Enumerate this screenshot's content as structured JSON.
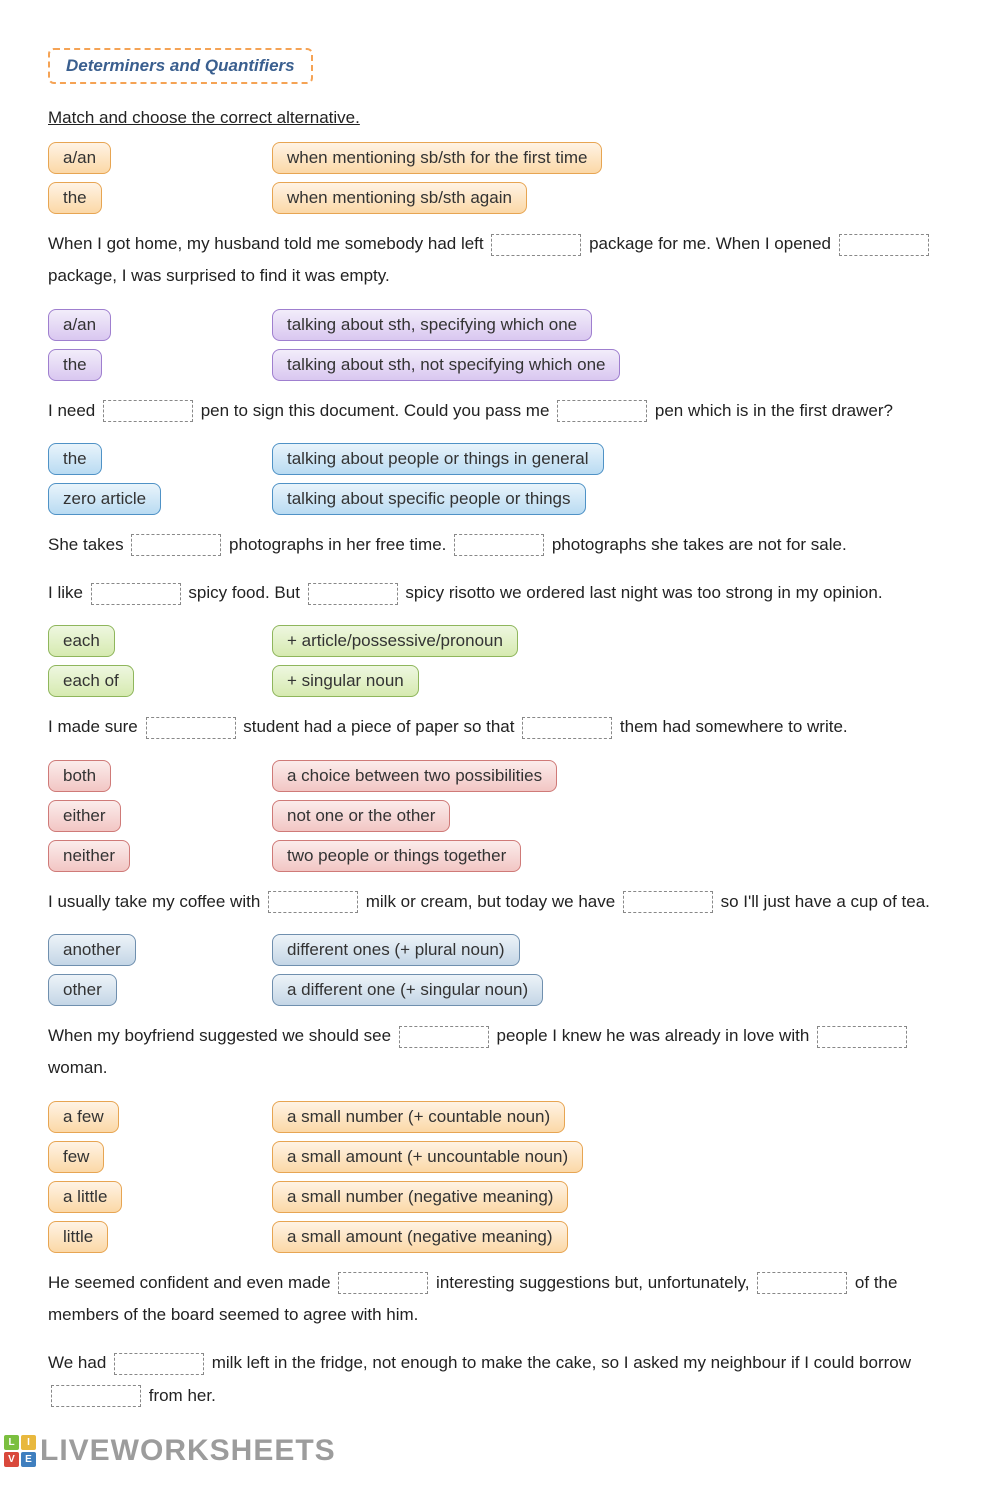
{
  "title": "Determiners and Quantifiers",
  "instruction": "Match and choose the correct alternative.",
  "groups": [
    {
      "color": "orange",
      "left": [
        "a/an",
        "the"
      ],
      "right": [
        "when mentioning sb/sth for the first time",
        "when mentioning sb/sth again"
      ],
      "sentences": [
        "When I got home, my husband told me somebody had left {blank} package for me. When I opened {blank} package, I was surprised to find it was empty."
      ]
    },
    {
      "color": "purple",
      "left": [
        "a/an",
        "the"
      ],
      "right": [
        "talking about sth, specifying which one",
        "talking about sth, not specifying which one"
      ],
      "sentences": [
        "I need {blank} pen to sign this document. Could you pass me {blank} pen which is in the first drawer?"
      ]
    },
    {
      "color": "blue",
      "left": [
        "the",
        "zero article"
      ],
      "right": [
        "talking about people or things in general",
        "talking about specific people or things"
      ],
      "sentences": [
        "She takes {blank} photographs in her free time. {blank} photographs she takes are not for sale.",
        "I like {blank} spicy food. But {blank} spicy risotto we ordered last night was too strong in my opinion."
      ]
    },
    {
      "color": "green",
      "left": [
        "each",
        "each of"
      ],
      "right": [
        "+ article/possessive/pronoun",
        "+ singular noun"
      ],
      "sentences": [
        "I made sure {blank} student had a piece of paper so that {blank} them had somewhere to write."
      ]
    },
    {
      "color": "red",
      "left": [
        "both",
        "either",
        "neither"
      ],
      "right": [
        "a choice between two possibilities",
        "not one or the other",
        "two people or things together"
      ],
      "sentences": [
        "I usually take my coffee with {blank} milk or cream, but today we have {blank} so I'll just have a cup of tea."
      ]
    },
    {
      "color": "steel",
      "left": [
        "another",
        "other"
      ],
      "right": [
        "different ones (+ plural noun)",
        "a different one (+ singular noun)"
      ],
      "sentences": [
        "When my boyfriend suggested we should see {blank} people I knew he was already in love with {blank} woman."
      ]
    },
    {
      "color": "orange",
      "left": [
        "a few",
        "few",
        "a little",
        "little"
      ],
      "right": [
        "a small number (+ countable noun)",
        "a small amount (+ uncountable noun)",
        "a small number (negative meaning)",
        "a small amount (negative meaning)"
      ],
      "sentences": [
        "He seemed confident and even made {blank} interesting suggestions but, unfortunately, {blank} of the members of the board seemed to agree with him.",
        "We had {blank} milk left in the fridge, not enough to make the cake, so I asked my neighbour if I could borrow {blank} from her."
      ]
    }
  ],
  "brand": {
    "squares": [
      {
        "t": "L",
        "c": "#7bbf3f"
      },
      {
        "t": "I",
        "c": "#e8b83e"
      },
      {
        "t": "V",
        "c": "#d9483b"
      },
      {
        "t": "E",
        "c": "#3f7fbf"
      }
    ],
    "text": "LIVEWORKSHEETS"
  }
}
